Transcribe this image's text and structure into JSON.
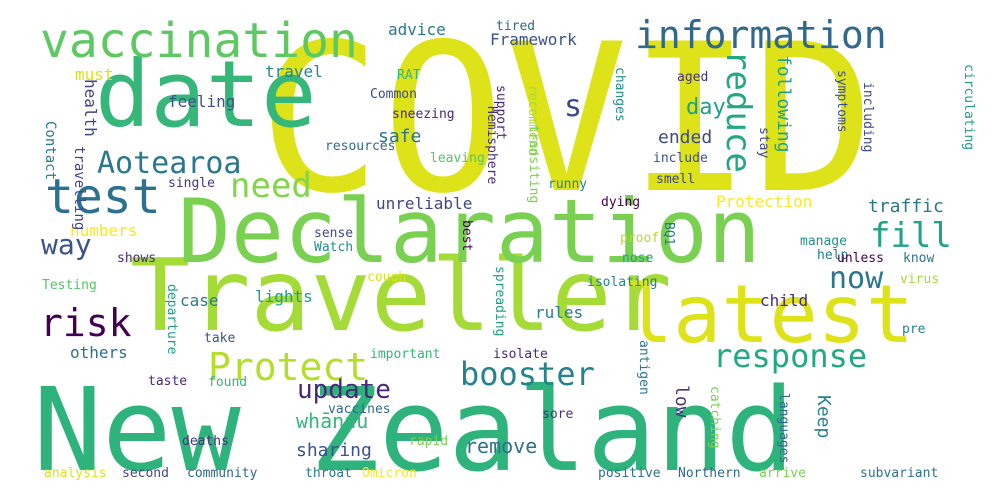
{
  "words": [
    {
      "text": "COVID",
      "color": "#dde318"
    },
    {
      "text": "New Zealand",
      "color": "#2eb37c"
    },
    {
      "text": "Traveller",
      "color": "#a5db36"
    },
    {
      "text": "Declaration",
      "color": "#7ad151"
    },
    {
      "text": "latest",
      "color": "#dde318"
    },
    {
      "text": "date",
      "color": "#35b779"
    },
    {
      "text": "vaccination",
      "color": "#5ec962"
    },
    {
      "text": "information",
      "color": "#31688e"
    },
    {
      "text": "test",
      "color": "#2c728e"
    },
    {
      "text": "Aotearoa",
      "color": "#2a788e"
    },
    {
      "text": "need",
      "color": "#84d44b"
    },
    {
      "text": "booster",
      "color": "#25838e"
    },
    {
      "text": "response",
      "color": "#22a884"
    },
    {
      "text": "Protect",
      "color": "#b5de2b"
    },
    {
      "text": "risk",
      "color": "#440154"
    },
    {
      "text": "reduce",
      "color": "#22a884"
    },
    {
      "text": "fill",
      "color": "#20a486"
    },
    {
      "text": "now",
      "color": "#2a788e"
    },
    {
      "text": "way",
      "color": "#3b528b"
    },
    {
      "text": "s",
      "color": "#3e4989"
    },
    {
      "text": "update",
      "color": "#482878"
    },
    {
      "text": "day",
      "color": "#1fa088"
    },
    {
      "text": "Keep",
      "color": "#26828e"
    },
    {
      "text": "whānau",
      "color": "#35b779"
    },
    {
      "text": "sharing",
      "color": "#3b528b"
    },
    {
      "text": "remove",
      "color": "#2c728e"
    },
    {
      "text": "low",
      "color": "#46327e"
    },
    {
      "text": "safe",
      "color": "#2c728e"
    },
    {
      "text": "ended",
      "color": "#3e4989"
    },
    {
      "text": "following",
      "color": "#1fa088"
    },
    {
      "text": "traffic",
      "color": "#2a788e"
    },
    {
      "text": "Protection",
      "color": "#fde725"
    },
    {
      "text": "unreliable",
      "color": "#414487"
    },
    {
      "text": "numbers",
      "color": "#fde725"
    },
    {
      "text": "lights",
      "color": "#1f9e89"
    },
    {
      "text": "rules",
      "color": "#287c8e"
    },
    {
      "text": "child",
      "color": "#482878"
    },
    {
      "text": "case",
      "color": "#2a788e"
    },
    {
      "text": "others",
      "color": "#2c728e"
    },
    {
      "text": "health",
      "color": "#414487"
    },
    {
      "text": "travel",
      "color": "#23898e"
    },
    {
      "text": "advice",
      "color": "#2a788e"
    },
    {
      "text": "Framework",
      "color": "#3b528b"
    },
    {
      "text": "must",
      "color": "#dde318"
    },
    {
      "text": "feeling",
      "color": "#3b528b"
    },
    {
      "text": "travelling",
      "color": "#3e4989"
    },
    {
      "text": "Contact",
      "color": "#287c8e"
    },
    {
      "text": "RAT",
      "color": "#35b779"
    },
    {
      "text": "Common",
      "color": "#3e4989"
    },
    {
      "text": "sneezing",
      "color": "#482878"
    },
    {
      "text": "resources",
      "color": "#31688e"
    },
    {
      "text": "leaving",
      "color": "#54c568"
    },
    {
      "text": "Hemisphere",
      "color": "#46327e"
    },
    {
      "text": "support",
      "color": "#482878"
    },
    {
      "text": "recommend",
      "color": "#a5db36"
    },
    {
      "text": "transiting",
      "color": "#7ad151"
    },
    {
      "text": "changes",
      "color": "#21918c"
    },
    {
      "text": "tired",
      "color": "#31688e"
    },
    {
      "text": "aged",
      "color": "#46327e"
    },
    {
      "text": "include",
      "color": "#3b528b"
    },
    {
      "text": "symptoms",
      "color": "#3b528b"
    },
    {
      "text": "circulating",
      "color": "#1f9e89"
    },
    {
      "text": "including",
      "color": "#3e4989"
    },
    {
      "text": "stay",
      "color": "#3e4989"
    },
    {
      "text": "smell",
      "color": "#3e4989"
    },
    {
      "text": "runny",
      "color": "#25838e"
    },
    {
      "text": "dying",
      "color": "#440154"
    },
    {
      "text": "single",
      "color": "#46327e"
    },
    {
      "text": "proof",
      "color": "#b5de2b"
    },
    {
      "text": "BQ1",
      "color": "#2a788e"
    },
    {
      "text": "nose",
      "color": "#1f9e89"
    },
    {
      "text": "help",
      "color": "#2a788e"
    },
    {
      "text": "manage",
      "color": "#21918c"
    },
    {
      "text": "know",
      "color": "#2c728e"
    },
    {
      "text": "unless",
      "color": "#440154"
    },
    {
      "text": "sense",
      "color": "#3e4989"
    },
    {
      "text": "Watch",
      "color": "#21918c"
    },
    {
      "text": "best",
      "color": "#440154"
    },
    {
      "text": "shows",
      "color": "#482878"
    },
    {
      "text": "Testing",
      "color": "#54c568"
    },
    {
      "text": "cough",
      "color": "#dde318"
    },
    {
      "text": "spreading",
      "color": "#1fa088"
    },
    {
      "text": "isolating",
      "color": "#26828e"
    },
    {
      "text": "virus",
      "color": "#a5db36"
    },
    {
      "text": "pre",
      "color": "#25838e"
    },
    {
      "text": "departure",
      "color": "#1f9e89"
    },
    {
      "text": "take",
      "color": "#3b528b"
    },
    {
      "text": "found",
      "color": "#35b779"
    },
    {
      "text": "important",
      "color": "#35b779"
    },
    {
      "text": "isolate",
      "color": "#482878"
    },
    {
      "text": "taste",
      "color": "#482878"
    },
    {
      "text": "vaccines",
      "color": "#31688e"
    },
    {
      "text": "deaths",
      "color": "#46327e"
    },
    {
      "text": "sore",
      "color": "#46327e"
    },
    {
      "text": "antigen",
      "color": "#2a788e"
    },
    {
      "text": "catching",
      "color": "#7ad151"
    },
    {
      "text": "languages",
      "color": "#31688e"
    },
    {
      "text": "rapid",
      "color": "#7ad151"
    },
    {
      "text": "analysis",
      "color": "#dde318"
    },
    {
      "text": "second",
      "color": "#3e4989"
    },
    {
      "text": "community",
      "color": "#31688e"
    },
    {
      "text": "throat",
      "color": "#2a788e"
    },
    {
      "text": "Omicron",
      "color": "#fde725"
    },
    {
      "text": "positive",
      "color": "#2c728e"
    },
    {
      "text": "Northern",
      "color": "#31688e"
    },
    {
      "text": "arrive",
      "color": "#7ad151"
    },
    {
      "text": "subvariant",
      "color": "#2c728e"
    }
  ]
}
